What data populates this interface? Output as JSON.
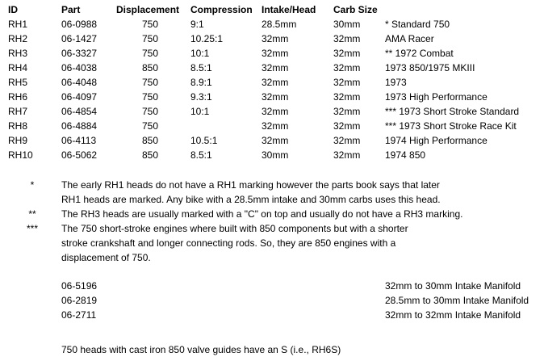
{
  "table": {
    "headers": {
      "id": "ID",
      "part": "Part",
      "displacement": "Displacement",
      "compression": "Compression",
      "intake": "Intake/Head",
      "carb": "Carb Size"
    },
    "rows": [
      {
        "id": "RH1",
        "part": "06-0988",
        "displacement": "750",
        "compression": "9:1",
        "intake": "28.5mm",
        "carb": "30mm",
        "note": "* Standard 750"
      },
      {
        "id": "RH2",
        "part": "06-1427",
        "displacement": "750",
        "compression": "10.25:1",
        "intake": "32mm",
        "carb": "32mm",
        "note": "AMA Racer"
      },
      {
        "id": "RH3",
        "part": "06-3327",
        "displacement": "750",
        "compression": "10:1",
        "intake": "32mm",
        "carb": "32mm",
        "note": "** 1972 Combat"
      },
      {
        "id": "RH4",
        "part": "06-4038",
        "displacement": "850",
        "compression": "8.5:1",
        "intake": "32mm",
        "carb": "32mm",
        "note": "1973 850/1975 MKIII"
      },
      {
        "id": "RH5",
        "part": "06-4048",
        "displacement": "750",
        "compression": "8.9:1",
        "intake": "32mm",
        "carb": "32mm",
        "note": "1973"
      },
      {
        "id": "RH6",
        "part": "06-4097",
        "displacement": "750",
        "compression": "9.3:1",
        "intake": "32mm",
        "carb": "32mm",
        "note": "1973 High Performance"
      },
      {
        "id": "RH7",
        "part": "06-4854",
        "displacement": "750",
        "compression": "10:1",
        "intake": "32mm",
        "carb": "32mm",
        "note": "*** 1973 Short Stroke Standard"
      },
      {
        "id": "RH8",
        "part": "06-4884",
        "displacement": "750",
        "compression": "",
        "intake": "32mm",
        "carb": "32mm",
        "note": "*** 1973 Short Stroke Race Kit"
      },
      {
        "id": "RH9",
        "part": "06-4113",
        "displacement": "850",
        "compression": "10.5:1",
        "intake": "32mm",
        "carb": "32mm",
        "note": "1974 High Performance"
      },
      {
        "id": "RH10",
        "part": "06-5062",
        "displacement": "850",
        "compression": "8.5:1",
        "intake": "30mm",
        "carb": "32mm",
        "note": "1974 850"
      }
    ]
  },
  "footnotes": [
    {
      "marker": "*",
      "lines": [
        "The early RH1 heads do not have a RH1 marking however the parts book says that later",
        "RH1 heads are marked. Any bike with a 28.5mm intake and 30mm carbs uses this head."
      ]
    },
    {
      "marker": "**",
      "lines": [
        "The RH3 heads are usually marked with a \"C\" on top and usually do not have a RH3 marking."
      ]
    },
    {
      "marker": "***",
      "lines": [
        "The 750 short-stroke engines where built with  850 components but with a shorter",
        "stroke crankshaft and longer connecting rods. So, they are 850 engines with a",
        "displacement of 750."
      ]
    }
  ],
  "manifolds": [
    {
      "part": "06-5196",
      "description": "32mm to 30mm Intake Manifold"
    },
    {
      "part": "06-2819",
      "description": "28.5mm to 30mm Intake Manifold"
    },
    {
      "part": "06-2711",
      "description": "32mm to 32mm Intake Manifold"
    }
  ],
  "closing_note": "750 heads with cast iron 850 valve guides have an S (i.e., RH6S)"
}
